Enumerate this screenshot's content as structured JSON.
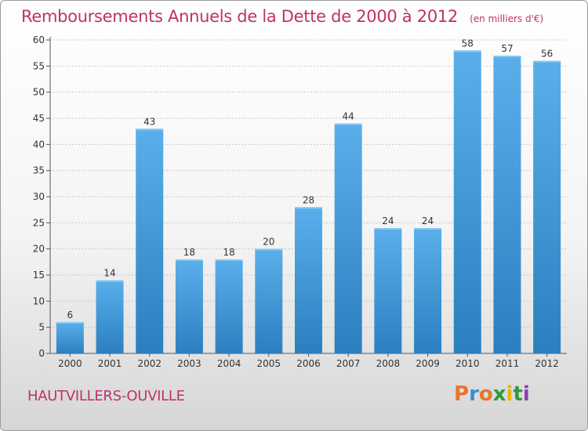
{
  "title": "Remboursements Annuels de la Dette de 2000 à 2012",
  "unit_note": "(en milliers d'€)",
  "commune": "HAUTVILLERS-OUVILLE",
  "logo": {
    "letters": [
      "P",
      "r",
      "o",
      "x",
      "i",
      "t",
      "i"
    ],
    "colors": [
      "#e8762b",
      "#3b8fd3",
      "#e8762b",
      "#2f9c3a",
      "#e8b500",
      "#2f9c3a",
      "#8d3db3"
    ]
  },
  "colors": {
    "title": "#c0306a",
    "bar_top": "#5aafeb",
    "bar_bottom": "#2c7fbf",
    "grid": "#c8c8c8"
  },
  "chart_data": {
    "type": "bar",
    "categories": [
      "2000",
      "2001",
      "2002",
      "2003",
      "2004",
      "2005",
      "2006",
      "2007",
      "2008",
      "2009",
      "2010",
      "2011",
      "2012"
    ],
    "values": [
      6,
      14,
      43,
      18,
      18,
      20,
      28,
      44,
      24,
      24,
      58,
      57,
      56
    ],
    "ylim": [
      0,
      60
    ],
    "yticks": [
      0,
      5,
      10,
      15,
      20,
      25,
      30,
      35,
      40,
      45,
      50,
      55,
      60
    ],
    "grid": true,
    "data_labels": true
  }
}
